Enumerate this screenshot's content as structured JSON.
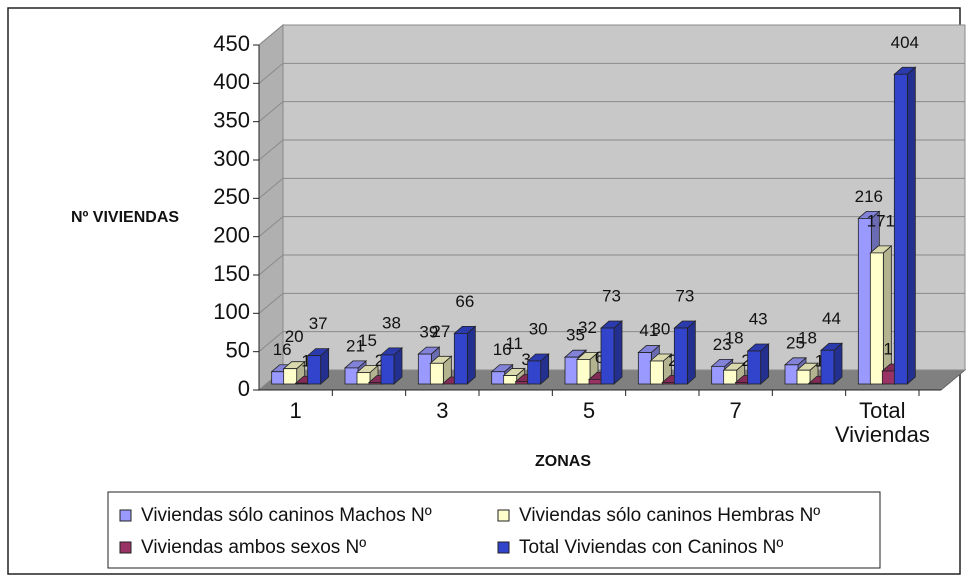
{
  "chart_data": {
    "type": "bar3d",
    "y_label": "Nº VIVIENDAS",
    "x_label": "ZONAS",
    "categories": [
      "1",
      null,
      "3",
      null,
      "5",
      null,
      "7",
      null,
      "Total Viviendas"
    ],
    "series": [
      {
        "name": "Viviendas sólo caninos Machos Nº",
        "color": "#9999ff",
        "values": [
          16,
          21,
          39,
          16,
          35,
          41,
          23,
          25,
          216
        ]
      },
      {
        "name": "Viviendas sólo caninos Hembras Nº",
        "color": "#ffffcc",
        "values": [
          20,
          15,
          27,
          11,
          32,
          30,
          18,
          18,
          171
        ]
      },
      {
        "name": "Viviendas ambos  sexos Nº",
        "color": "#993366",
        "values": [
          1,
          2,
          0,
          3,
          6,
          2,
          2,
          1,
          17
        ]
      },
      {
        "name": "Total  Viviendas con Caninos Nº",
        "color": "#3344cc",
        "values": [
          37,
          38,
          66,
          30,
          73,
          73,
          43,
          44,
          404
        ]
      }
    ],
    "ylim": [
      0,
      450
    ],
    "yticks": [
      0,
      50,
      100,
      150,
      200,
      250,
      300,
      350,
      400,
      450
    ],
    "grid": true
  }
}
